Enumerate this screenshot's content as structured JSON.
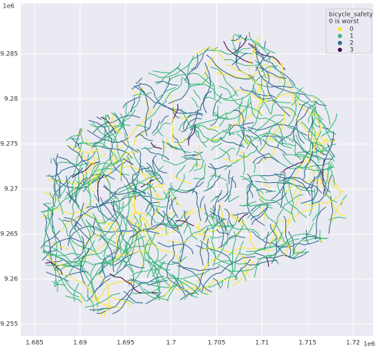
{
  "chart_data": {
    "type": "map",
    "x_offset_label": "1e6",
    "y_offset_label": "1e6",
    "xlim": [
      1.68348,
      1.7222
    ],
    "ylim": [
      9.25369,
      9.29062
    ],
    "xticks": [
      1.685,
      1.69,
      1.695,
      1.7,
      1.705,
      1.71,
      1.715,
      1.72
    ],
    "yticks": [
      9.255,
      9.26,
      9.265,
      9.27,
      9.275,
      9.28,
      9.285
    ],
    "grid": true,
    "legend": {
      "title": "bicycle_safety",
      "subtitle": "0 is worst",
      "corner": "upper right",
      "entries": [
        {
          "name": "0",
          "color": "#fde725"
        },
        {
          "name": "1",
          "color": "#35b779"
        },
        {
          "name": "2",
          "color": "#31688e"
        },
        {
          "name": "3",
          "color": "#440154"
        }
      ]
    }
  }
}
